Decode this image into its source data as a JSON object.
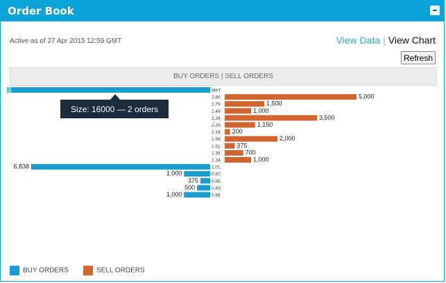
{
  "widget": {
    "title": "Order Book",
    "active_text": "Active as of 27 Apr 2015 12:59 GMT",
    "view_data_label": "View Data",
    "separator": "|",
    "view_chart_label": "View Chart",
    "refresh_label": "Refresh",
    "chart_header": "BUY ORDERS | SELL ORDERS",
    "tooltip": "Size: 16000 — 2 orders"
  },
  "colors": {
    "accent": "#0aa3d8",
    "buy": "#1a9ccf",
    "sell": "#d2642f",
    "tooltip_bg": "#1b2a3d"
  },
  "legend": {
    "buy_label": "BUY ORDERS",
    "sell_label": "SELL ORDERS"
  },
  "chart_data": {
    "type": "bar",
    "title": "BUY ORDERS | SELL ORDERS",
    "categories": [
      "MKT",
      "2.80",
      "2.79",
      "2.49",
      "2.34",
      "2.20",
      "2.19",
      "1.59",
      "1.51",
      "1.35",
      "1.34",
      "1.01",
      "0.87",
      "0.85",
      "0.83",
      "0.69"
    ],
    "series": [
      {
        "name": "BUY ORDERS",
        "values": [
          16000,
          null,
          null,
          null,
          null,
          null,
          null,
          null,
          null,
          null,
          null,
          6838,
          1000,
          375,
          500,
          1000
        ],
        "labels": [
          "",
          "",
          "",
          "",
          "",
          "",
          "",
          "",
          "",
          "",
          "",
          "6,838",
          "1,000",
          "375",
          "500",
          "1,000"
        ]
      },
      {
        "name": "SELL ORDERS",
        "values": [
          null,
          5000,
          1500,
          1000,
          3500,
          1150,
          200,
          2000,
          375,
          700,
          1000,
          null,
          null,
          null,
          null,
          null
        ],
        "labels": [
          "",
          "5,000",
          "1,500",
          "1,000",
          "3,500",
          "1,150",
          "200",
          "2,000",
          "375",
          "700",
          "1,000",
          "",
          "",
          "",
          "",
          ""
        ]
      }
    ],
    "legend_position": "bottom-left",
    "grid": false
  }
}
